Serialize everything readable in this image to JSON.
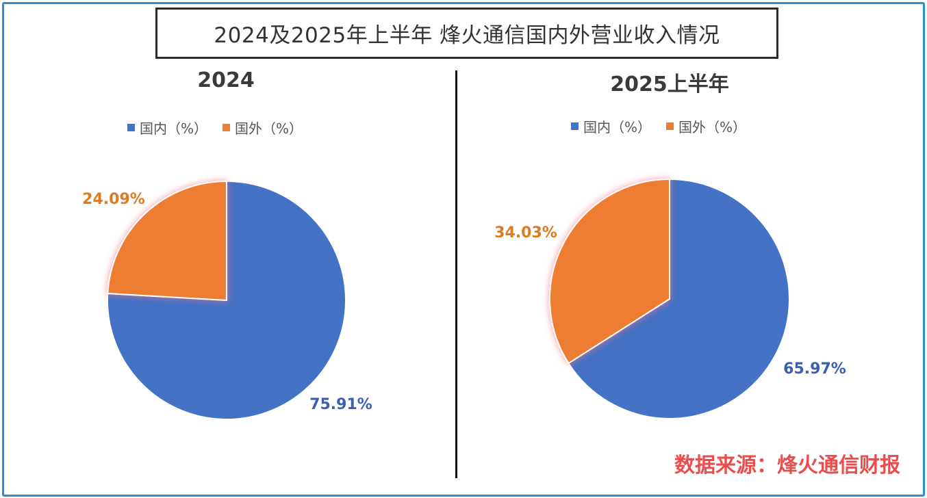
{
  "title": "2024及2025年上半年  烽火通信国内外营业收入情况",
  "credit": "数据来源：烽火通信财报",
  "chart_data": [
    {
      "type": "pie",
      "title": "2024",
      "legend": [
        "国内（%）",
        "国外（%）"
      ],
      "slices": [
        {
          "name": "国内（%）",
          "value": 75.91,
          "label": "75.91%",
          "color": "#4472c4"
        },
        {
          "name": "国外（%）",
          "value": 24.09,
          "label": "24.09%",
          "color": "#ed7d31"
        }
      ]
    },
    {
      "type": "pie",
      "title": "2025上半年",
      "legend": [
        "国内（%）",
        "国外（%）"
      ],
      "slices": [
        {
          "name": "国内（%）",
          "value": 65.97,
          "label": "65.97%",
          "color": "#4472c4"
        },
        {
          "name": "国外（%）",
          "value": 34.03,
          "label": "34.03%",
          "color": "#ed7d31"
        }
      ]
    }
  ]
}
